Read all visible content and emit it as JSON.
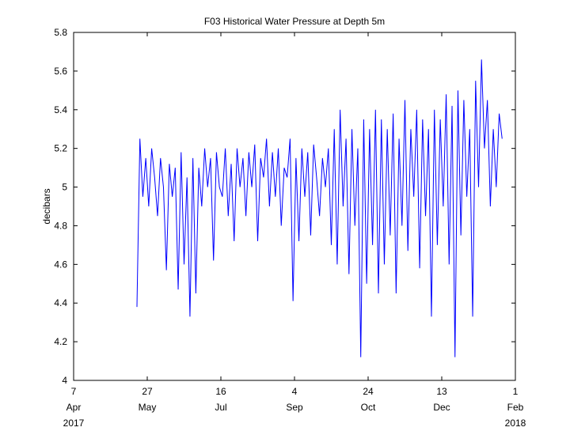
{
  "chart_data": {
    "type": "line",
    "title": "F03 Historical Water Pressure at Depth 5m",
    "y_label": "decibars",
    "x": [
      "2017-05-20",
      "2017-05-22",
      "2017-05-24",
      "2017-05-26",
      "2017-05-28",
      "2017-05-30",
      "2017-06-01",
      "2017-06-03",
      "2017-06-05",
      "2017-06-07",
      "2017-06-09",
      "2017-06-11",
      "2017-06-13",
      "2017-06-15",
      "2017-06-17",
      "2017-06-19",
      "2017-06-21",
      "2017-06-23",
      "2017-06-25",
      "2017-06-27",
      "2017-06-29",
      "2017-07-01",
      "2017-07-03",
      "2017-07-05",
      "2017-07-07",
      "2017-07-09",
      "2017-07-11",
      "2017-07-13",
      "2017-07-15",
      "2017-07-17",
      "2017-07-19",
      "2017-07-21",
      "2017-07-23",
      "2017-07-25",
      "2017-07-27",
      "2017-07-29",
      "2017-07-31",
      "2017-08-02",
      "2017-08-04",
      "2017-08-06",
      "2017-08-08",
      "2017-08-10",
      "2017-08-12",
      "2017-08-14",
      "2017-08-16",
      "2017-08-18",
      "2017-08-20",
      "2017-08-22",
      "2017-08-24",
      "2017-08-26",
      "2017-08-28",
      "2017-08-30",
      "2017-09-01",
      "2017-09-03",
      "2017-09-05",
      "2017-09-07",
      "2017-09-09",
      "2017-09-11",
      "2017-09-13",
      "2017-09-15",
      "2017-09-17",
      "2017-09-19",
      "2017-09-21",
      "2017-09-23",
      "2017-09-25",
      "2017-09-27",
      "2017-09-29",
      "2017-10-01",
      "2017-10-03",
      "2017-10-05",
      "2017-10-07",
      "2017-10-09",
      "2017-10-11",
      "2017-10-13",
      "2017-10-15",
      "2017-10-17",
      "2017-10-19",
      "2017-10-21",
      "2017-10-23",
      "2017-10-25",
      "2017-10-27",
      "2017-10-29",
      "2017-10-31",
      "2017-11-02",
      "2017-11-04",
      "2017-11-06",
      "2017-11-08",
      "2017-11-10",
      "2017-11-12",
      "2017-11-14",
      "2017-11-16",
      "2017-11-18",
      "2017-11-20",
      "2017-11-22",
      "2017-11-24",
      "2017-11-26",
      "2017-11-28",
      "2017-11-30",
      "2017-12-02",
      "2017-12-04",
      "2017-12-06",
      "2017-12-08",
      "2017-12-10",
      "2017-12-12",
      "2017-12-14",
      "2017-12-16",
      "2017-12-18",
      "2017-12-20",
      "2017-12-22",
      "2017-12-24",
      "2017-12-26",
      "2017-12-28",
      "2017-12-30",
      "2018-01-01",
      "2018-01-03",
      "2018-01-05",
      "2018-01-07",
      "2018-01-09",
      "2018-01-11",
      "2018-01-13",
      "2018-01-15",
      "2018-01-17",
      "2018-01-19",
      "2018-01-21",
      "2018-01-23"
    ],
    "series": [
      {
        "color": "#0000ff",
        "values": [
          4.38,
          5.25,
          4.95,
          5.15,
          4.9,
          5.2,
          5.05,
          4.85,
          5.15,
          5.0,
          4.57,
          5.12,
          4.95,
          5.1,
          4.47,
          5.18,
          4.6,
          5.05,
          4.33,
          5.15,
          4.45,
          5.1,
          4.9,
          5.2,
          5.0,
          5.15,
          4.62,
          5.18,
          5.0,
          4.95,
          5.2,
          4.85,
          5.12,
          4.72,
          5.2,
          5.0,
          5.15,
          4.85,
          5.18,
          5.0,
          5.22,
          4.72,
          5.15,
          5.05,
          5.25,
          4.9,
          5.18,
          4.95,
          5.2,
          4.8,
          5.1,
          5.05,
          5.25,
          4.41,
          5.15,
          4.72,
          5.2,
          4.95,
          5.18,
          4.75,
          5.22,
          5.05,
          4.85,
          5.15,
          5.0,
          5.2,
          4.7,
          5.3,
          4.6,
          5.4,
          4.9,
          5.25,
          4.55,
          5.3,
          4.8,
          5.2,
          4.12,
          5.35,
          4.5,
          5.3,
          4.7,
          5.4,
          4.45,
          5.35,
          4.6,
          5.3,
          4.75,
          5.38,
          4.45,
          5.25,
          4.8,
          5.45,
          4.67,
          5.3,
          4.95,
          5.4,
          4.58,
          5.35,
          4.85,
          5.3,
          4.33,
          5.4,
          4.7,
          5.35,
          4.9,
          5.48,
          4.6,
          5.42,
          4.12,
          5.5,
          4.75,
          5.45,
          4.95,
          5.3,
          4.33,
          5.55,
          5.0,
          5.66,
          5.2,
          5.45,
          4.9,
          5.3,
          5.0,
          5.38,
          5.25
        ]
      }
    ],
    "xlim": [
      "2017-04-07",
      "2018-02-01"
    ],
    "xticks": [
      {
        "value": "2017-04-07",
        "label": "7",
        "month": "Apr"
      },
      {
        "value": "2017-05-27",
        "label": "27",
        "month": "May"
      },
      {
        "value": "2017-07-16",
        "label": "16",
        "month": "Jul"
      },
      {
        "value": "2017-09-04",
        "label": "4",
        "month": "Sep"
      },
      {
        "value": "2017-10-24",
        "label": "24",
        "month": "Oct"
      },
      {
        "value": "2017-12-13",
        "label": "13",
        "month": "Dec"
      },
      {
        "value": "2018-02-01",
        "label": "1",
        "month": "Feb"
      }
    ],
    "x_year_labels": [
      {
        "value": "2017-04-07",
        "label": "2017"
      },
      {
        "value": "2018-02-01",
        "label": "2018"
      }
    ],
    "ylim": [
      4,
      5.8
    ],
    "yticks": [
      4,
      4.2,
      4.4,
      4.6,
      4.8,
      5,
      5.2,
      5.4,
      5.6,
      5.8
    ],
    "grid": false
  }
}
